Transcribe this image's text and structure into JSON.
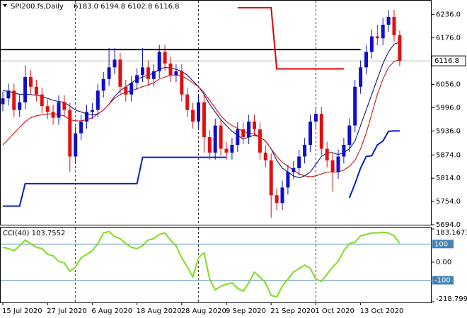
{
  "chart_data": [
    {
      "type": "candlestick",
      "title": "SPI200.fs,Daily",
      "quote": "6183.0 6194.8 6102.8 6116.8",
      "categories": [
        "15 Jul 2020",
        null,
        null,
        null,
        null,
        null,
        null,
        null,
        "27 Jul 2020",
        null,
        null,
        null,
        null,
        null,
        null,
        null,
        "6 Aug 2020",
        null,
        null,
        null,
        null,
        null,
        null,
        null,
        "18 Aug 2020",
        null,
        null,
        null,
        null,
        null,
        null,
        null,
        "28 Aug 2020",
        null,
        null,
        null,
        null,
        null,
        null,
        null,
        "9 Sep 2020",
        null,
        null,
        null,
        null,
        null,
        null,
        null,
        "21 Sep 2020",
        null,
        null,
        null,
        null,
        null,
        null,
        null,
        "1 Oct 2020",
        null,
        null,
        null,
        null,
        null,
        null,
        null,
        "13 Oct 2020",
        null,
        null,
        null,
        null,
        null,
        null,
        null
      ],
      "open": [
        6005,
        6020,
        6040,
        5990,
        6010,
        6075,
        6050,
        6030,
        6000,
        5985,
        5970,
        6010,
        5990,
        5870,
        5930,
        5960,
        5985,
        5990,
        6040,
        6070,
        6100,
        6120,
        6050,
        6030,
        6060,
        6080,
        6100,
        6070,
        6090,
        6140,
        6110,
        6080,
        6090,
        6030,
        5990,
        5960,
        6010,
        5920,
        5880,
        5950,
        5890,
        5880,
        5900,
        5940,
        5920,
        5960,
        5940,
        5880,
        5860,
        5770,
        5750,
        5790,
        5830,
        5840,
        5870,
        5900,
        5960,
        5980,
        5890,
        5860,
        5830,
        5870,
        5900,
        5950,
        6050,
        6100,
        6140,
        6180,
        6175,
        6210,
        6230,
        6183
      ],
      "high": [
        6038,
        6058,
        6058,
        6028,
        6105,
        6093,
        6068,
        6048,
        6018,
        6003,
        6028,
        6028,
        6008,
        5948,
        5978,
        6003,
        6008,
        6058,
        6088,
        6150,
        6150,
        6138,
        6068,
        6078,
        6098,
        6150,
        6118,
        6108,
        6158,
        6158,
        6128,
        6108,
        6108,
        6048,
        6008,
        6028,
        6028,
        5938,
        5968,
        5968,
        5908,
        5918,
        5958,
        5958,
        5978,
        5978,
        5958,
        5898,
        5878,
        5788,
        5808,
        5848,
        5858,
        5888,
        5918,
        5978,
        5998,
        5998,
        5908,
        5878,
        5888,
        5918,
        5968,
        6068,
        6118,
        6158,
        6198,
        6210,
        6228,
        6248,
        6248,
        6194.8
      ],
      "low": [
        5987,
        6002,
        5972,
        5972,
        5992,
        6032,
        6012,
        5982,
        5967,
        5952,
        5952,
        5972,
        5830,
        5852,
        5912,
        5942,
        5967,
        5972,
        6022,
        6052,
        6082,
        6032,
        6012,
        6012,
        6042,
        6062,
        6052,
        6052,
        6072,
        6092,
        6062,
        6062,
        6012,
        5972,
        5942,
        5942,
        5880,
        5862,
        5862,
        5872,
        5862,
        5862,
        5882,
        5902,
        5902,
        5922,
        5862,
        5842,
        5712,
        5732,
        5732,
        5772,
        5812,
        5822,
        5852,
        5882,
        5942,
        5872,
        5842,
        5780,
        5812,
        5852,
        5882,
        5932,
        6032,
        6082,
        6122,
        6157,
        6157,
        6192,
        6165,
        6102.8
      ],
      "close": [
        6020,
        6040,
        5990,
        6010,
        6075,
        6050,
        6030,
        6000,
        5985,
        5970,
        6010,
        5990,
        5870,
        5930,
        5960,
        5985,
        5990,
        6040,
        6070,
        6100,
        6120,
        6050,
        6030,
        6060,
        6080,
        6100,
        6070,
        6090,
        6140,
        6110,
        6080,
        6090,
        6030,
        5990,
        5960,
        6010,
        5920,
        5880,
        5950,
        5890,
        5880,
        5900,
        5940,
        5920,
        5960,
        5940,
        5880,
        5860,
        5770,
        5750,
        5790,
        5830,
        5840,
        5870,
        5900,
        5960,
        5980,
        5890,
        5860,
        5830,
        5870,
        5900,
        5950,
        6050,
        6100,
        6140,
        6180,
        6175,
        6210,
        6230,
        6183,
        6116.8
      ],
      "up_color": "#1010c8",
      "down_color": "#e01010",
      "overlays": [
        {
          "color": "#000066",
          "values": [
            6040,
            6038,
            6035,
            6030,
            6030,
            6030,
            6028,
            6025,
            6020,
            6015,
            6012,
            6010,
            6000,
            5990,
            5985,
            5980,
            5978,
            5980,
            5990,
            6005,
            6025,
            6040,
            6050,
            6060,
            6070,
            6075,
            6080,
            6085,
            6095,
            6100,
            6098,
            6095,
            6090,
            6080,
            6065,
            6050,
            6030,
            6005,
            5985,
            5965,
            5950,
            5935,
            5925,
            5915,
            5920,
            5925,
            5920,
            5910,
            5890,
            5860,
            5840,
            5830,
            5820,
            5815,
            5820,
            5830,
            5850,
            5870,
            5880,
            5880,
            5875,
            5880,
            5890,
            5910,
            5950,
            5990,
            6030,
            6070,
            6110,
            6140,
            6160,
            6165
          ]
        },
        {
          "color": "#cc0000",
          "values": [
            5900,
            5915,
            5930,
            5945,
            5960,
            5970,
            5975,
            5978,
            5980,
            5980,
            5978,
            5975,
            5965,
            5962,
            5962,
            5965,
            5970,
            5980,
            5990,
            6005,
            6020,
            6030,
            6035,
            6040,
            6045,
            6050,
            6055,
            6060,
            6070,
            6075,
            6080,
            6080,
            6078,
            6070,
            6060,
            6050,
            6035,
            6015,
            5995,
            5975,
            5960,
            5950,
            5942,
            5935,
            5930,
            5928,
            5920,
            5910,
            5890,
            5870,
            5855,
            5845,
            5835,
            5825,
            5820,
            5818,
            5820,
            5825,
            5830,
            5830,
            5830,
            5835,
            5845,
            5860,
            5890,
            5930,
            5980,
            6030,
            6070,
            6100,
            6115,
            6120
          ]
        },
        {
          "color": "#e00000",
          "width": 2,
          "values": [
            null,
            null,
            null,
            null,
            null,
            null,
            null,
            null,
            null,
            null,
            null,
            null,
            null,
            null,
            null,
            null,
            null,
            null,
            null,
            null,
            null,
            null,
            null,
            null,
            null,
            null,
            null,
            null,
            null,
            null,
            null,
            null,
            null,
            null,
            null,
            null,
            null,
            null,
            null,
            null,
            null,
            null,
            6254,
            6254,
            6254,
            6254,
            6254,
            6254,
            6254,
            6096,
            6096,
            6096,
            6096,
            6096,
            6096,
            6096,
            6096,
            6096,
            6096,
            6096,
            6096,
            6096,
            null,
            null,
            null,
            null,
            null,
            null,
            null,
            null,
            null,
            null
          ]
        },
        {
          "color": "#0a1ec8",
          "width": 2,
          "values": [
            5742,
            5742,
            5742,
            5742,
            5800,
            5800,
            5800,
            5800,
            5800,
            5800,
            5800,
            5800,
            5800,
            5800,
            5800,
            5800,
            5800,
            5800,
            5800,
            5800,
            5800,
            5800,
            5800,
            5800,
            5800,
            5868,
            5868,
            5868,
            5868,
            5868,
            5868,
            5868,
            5868,
            5868,
            5868,
            5868,
            5868,
            5868,
            5868,
            5868,
            5868,
            null,
            null,
            null,
            null,
            null,
            null,
            null,
            null,
            null,
            null,
            null,
            null,
            null,
            null,
            null,
            null,
            null,
            null,
            null,
            null,
            null,
            5763,
            5800,
            5840,
            5870,
            5872,
            5900,
            5910,
            5935,
            5936,
            5936
          ]
        }
      ],
      "level": 6146,
      "level_color": "#000000",
      "last_price": 6116.8,
      "ylim": [
        5694,
        6272
      ],
      "yticks": [
        {
          "value": 6236,
          "label": "6236.0"
        },
        {
          "value": 6176,
          "label": "6176.0"
        },
        {
          "value": 6056,
          "label": "6056.0"
        },
        {
          "value": 5996,
          "label": "5996.0"
        },
        {
          "value": 5936,
          "label": "5936.0"
        },
        {
          "value": 5874,
          "label": "5874.0"
        },
        {
          "value": 5814,
          "label": "5814.0"
        },
        {
          "value": 5754,
          "label": "5754.0"
        },
        {
          "value": 5694,
          "label": "5694.0"
        }
      ]
    },
    {
      "type": "line",
      "title": "CCI(40) 103.7552",
      "color": "#7fdc1e",
      "values": [
        82,
        75,
        63,
        90,
        122,
        102,
        82,
        75,
        43,
        35,
        4,
        -4,
        -51,
        -27,
        24,
        43,
        63,
        102,
        161,
        169,
        141,
        129,
        102,
        82,
        75,
        90,
        122,
        129,
        153,
        161,
        122,
        90,
        24,
        -27,
        -82,
        24,
        51,
        -94,
        -153,
        -133,
        -122,
        -114,
        -145,
        -161,
        -114,
        -55,
        -82,
        -114,
        -184,
        -192,
        -133,
        -94,
        -55,
        -35,
        -16,
        -35,
        -94,
        -106,
        -67,
        -27,
        4,
        63,
        102,
        110,
        145,
        153,
        161,
        161,
        165,
        161,
        145,
        103.7552
      ],
      "ylim": [
        -218.799,
        183.1673
      ],
      "yticks": [
        183.1673,
        {
          "value": 0,
          "label": "0.00"
        },
        -218.799
      ],
      "levels": [
        100,
        -100
      ],
      "level_color": "#4682b4"
    }
  ]
}
